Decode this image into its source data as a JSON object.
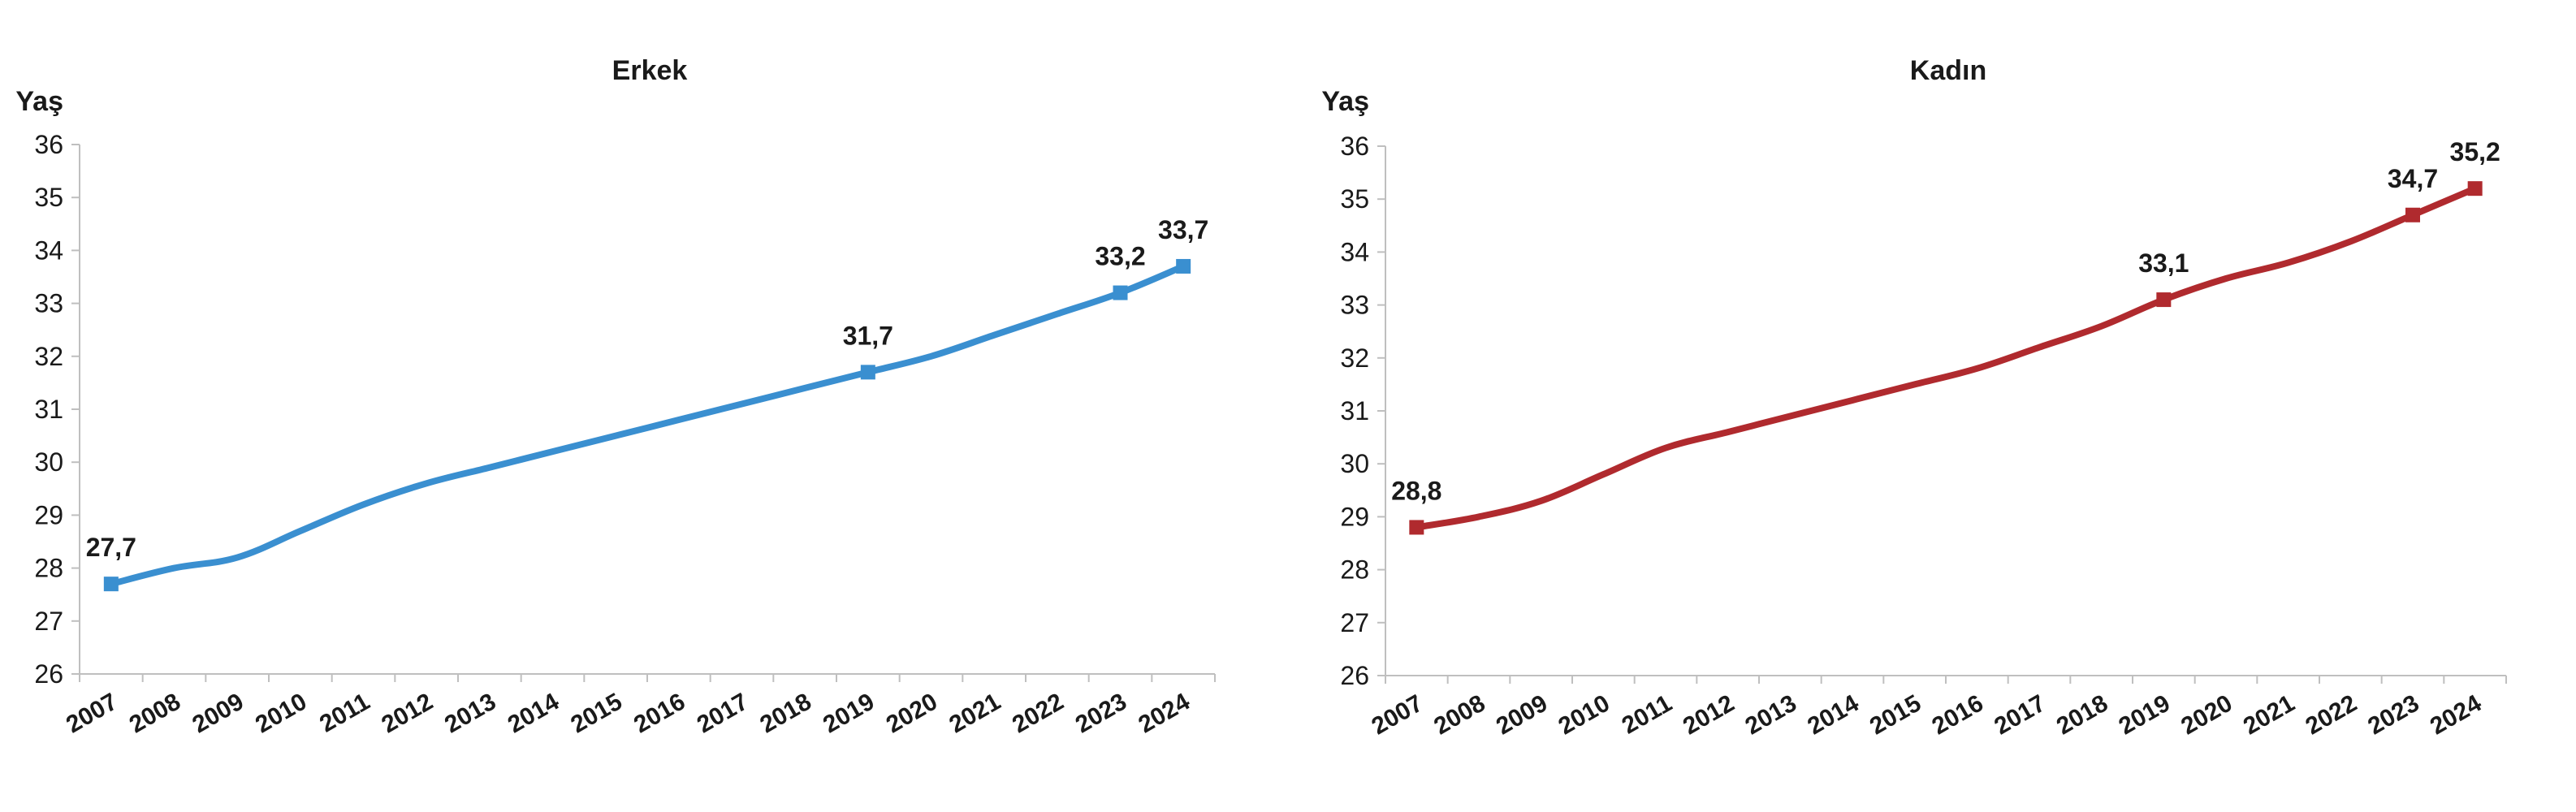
{
  "chart_data": [
    {
      "type": "line",
      "title": "Erkek",
      "ylabel": "Yaş",
      "xlabel": "",
      "ylim": [
        26,
        36
      ],
      "yticks": [
        26,
        27,
        28,
        29,
        30,
        31,
        32,
        33,
        34,
        35,
        36
      ],
      "grid": false,
      "legend": "none",
      "color": "#3a8fd0",
      "categories": [
        "2007",
        "2008",
        "2009",
        "2010",
        "2011",
        "2012",
        "2013",
        "2014",
        "2015",
        "2016",
        "2017",
        "2018",
        "2019",
        "2020",
        "2021",
        "2022",
        "2023",
        "2024"
      ],
      "values": [
        27.7,
        28.0,
        28.2,
        28.7,
        29.2,
        29.6,
        29.9,
        30.2,
        30.5,
        30.8,
        31.1,
        31.4,
        31.7,
        32.0,
        32.4,
        32.8,
        33.2,
        33.7
      ],
      "labels": [
        {
          "index": 0,
          "text": "27,7"
        },
        {
          "index": 12,
          "text": "31,7"
        },
        {
          "index": 16,
          "text": "33,2"
        },
        {
          "index": 17,
          "text": "33,7"
        }
      ]
    },
    {
      "type": "line",
      "title": "Kadın",
      "ylabel": "Yaş",
      "xlabel": "",
      "ylim": [
        26,
        36
      ],
      "yticks": [
        26,
        27,
        28,
        29,
        30,
        31,
        32,
        33,
        34,
        35,
        36
      ],
      "grid": false,
      "legend": "none",
      "color": "#b02a2e",
      "categories": [
        "2007",
        "2008",
        "2009",
        "2010",
        "2011",
        "2012",
        "2013",
        "2014",
        "2015",
        "2016",
        "2017",
        "2018",
        "2019",
        "2020",
        "2021",
        "2022",
        "2023",
        "2024"
      ],
      "values": [
        28.8,
        29.0,
        29.3,
        29.8,
        30.3,
        30.6,
        30.9,
        31.2,
        31.5,
        31.8,
        32.2,
        32.6,
        33.1,
        33.5,
        33.8,
        34.2,
        34.7,
        35.2
      ],
      "labels": [
        {
          "index": 0,
          "text": "28,8"
        },
        {
          "index": 12,
          "text": "33,1"
        },
        {
          "index": 16,
          "text": "34,7"
        },
        {
          "index": 17,
          "text": "35,2"
        }
      ]
    }
  ]
}
